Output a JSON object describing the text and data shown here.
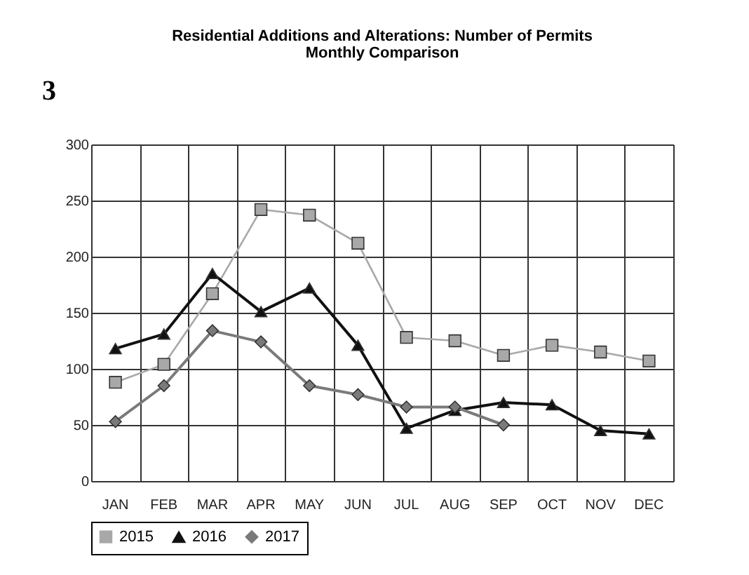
{
  "chart_data": {
    "type": "line",
    "title": "Residential Additions and Alterations: Number of Permits",
    "subtitle": "Monthly Comparison",
    "annotations": [
      "3"
    ],
    "categories": [
      "JAN",
      "FEB",
      "MAR",
      "APR",
      "MAY",
      "JUN",
      "JUL",
      "AUG",
      "SEP",
      "OCT",
      "NOV",
      "DEC"
    ],
    "series": [
      {
        "name": "2015",
        "color": "#a8a8a8",
        "marker": "square",
        "values": [
          88,
          104,
          167,
          242,
          237,
          212,
          128,
          125,
          112,
          121,
          115,
          107
        ]
      },
      {
        "name": "2016",
        "color": "#111111",
        "marker": "triangle",
        "values": [
          118,
          131,
          185,
          151,
          172,
          121,
          47,
          63,
          70,
          68,
          45,
          42
        ]
      },
      {
        "name": "2017",
        "color": "#7a7a7a",
        "marker": "diamond",
        "values": [
          53,
          85,
          134,
          124,
          85,
          77,
          66,
          66,
          50,
          null,
          null,
          null
        ]
      }
    ],
    "ylim": [
      0,
      300
    ],
    "yticks": [
      0,
      50,
      100,
      150,
      200,
      250,
      300
    ],
    "grid": true,
    "legend": "bottom",
    "line_style": "solid"
  }
}
